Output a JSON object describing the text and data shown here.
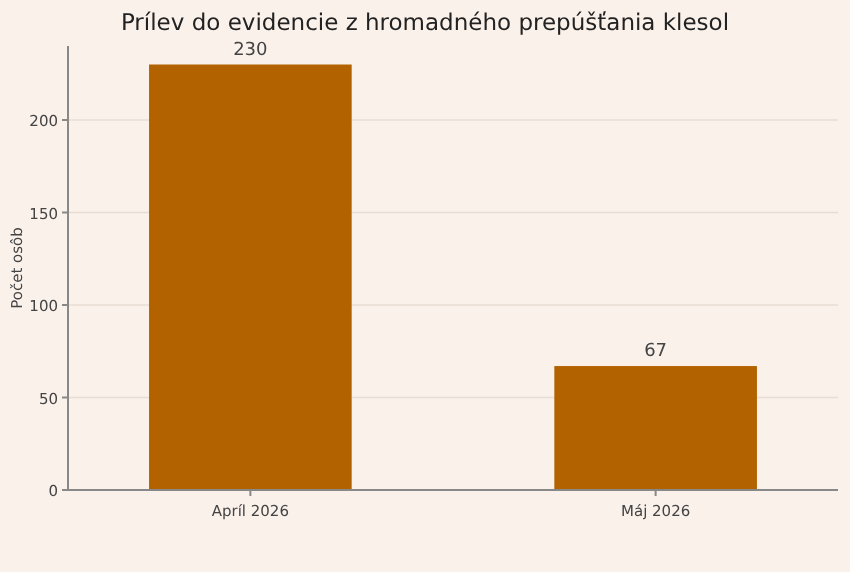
{
  "chart_data": {
    "type": "bar",
    "title": "Prílev do evidencie z hromadného prepúšťania klesol",
    "ylabel": "Počet osôb",
    "categories": [
      "Apríl 2026",
      "Máj 2026"
    ],
    "values": [
      230,
      67
    ],
    "color": "#b36200",
    "ylim": [
      0,
      240
    ],
    "yticks": [
      0,
      50,
      100,
      150,
      200
    ],
    "grid": "y",
    "data_labels": true
  }
}
